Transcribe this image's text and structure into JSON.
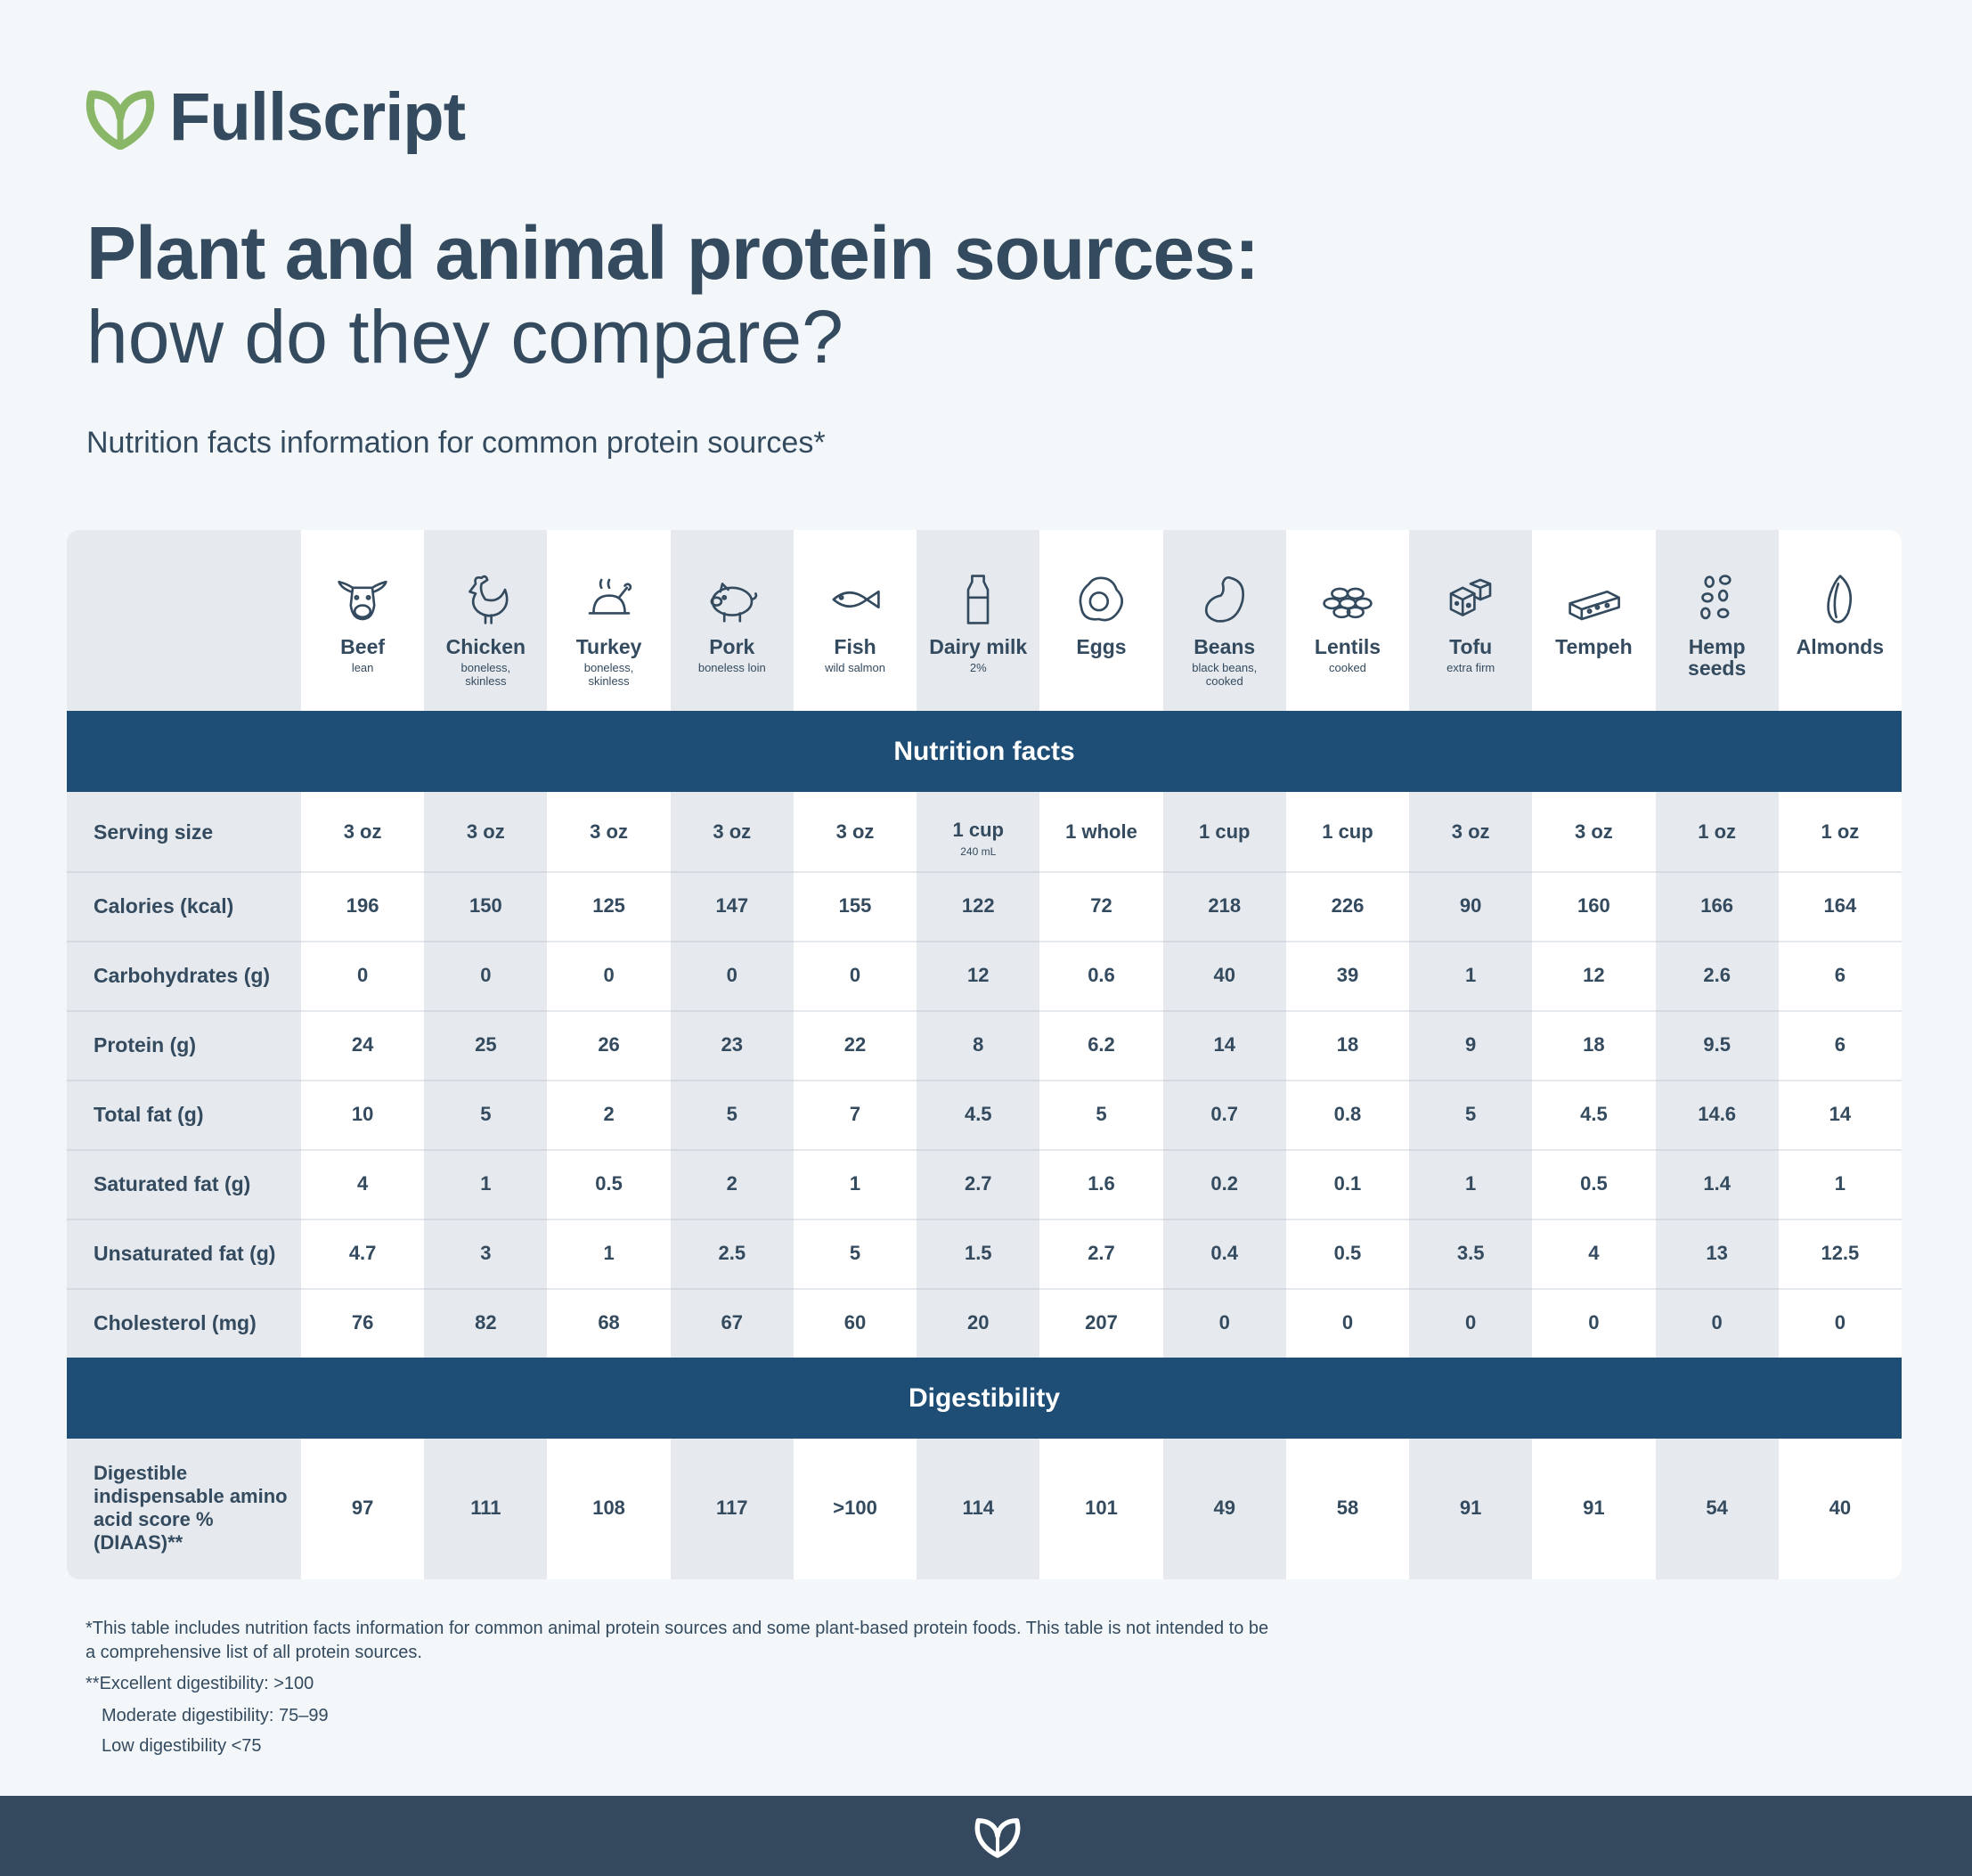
{
  "header": {
    "brand": "Fullscript",
    "title": "Plant and animal protein sources:",
    "subtitle": "how do they compare?",
    "intro": "Nutrition facts information for common protein sources*"
  },
  "table": {
    "columns": [
      {
        "name": "Beef",
        "note": "lean"
      },
      {
        "name": "Chicken",
        "note": "boneless, skinless"
      },
      {
        "name": "Turkey",
        "note": "boneless, skinless"
      },
      {
        "name": "Pork",
        "note": "boneless loin"
      },
      {
        "name": "Fish",
        "note": "wild salmon"
      },
      {
        "name": "Dairy milk",
        "note": "2%"
      },
      {
        "name": "Eggs"
      },
      {
        "name": "Beans",
        "note": "black beans, cooked"
      },
      {
        "name": "Lentils",
        "note": "cooked"
      },
      {
        "name": "Tofu",
        "note": "extra firm"
      },
      {
        "name": "Tempeh"
      },
      {
        "name": "Hemp seeds"
      },
      {
        "name": "Almonds"
      }
    ],
    "sections": [
      {
        "title": "Nutrition facts",
        "rows": [
          {
            "label": "Serving size",
            "values": [
              "3 oz",
              "3 oz",
              "3 oz",
              "3 oz",
              "3 oz",
              {
                "text": "1 cup",
                "note": "240 mL"
              },
              "1 whole",
              "1 cup",
              "1 cup",
              "3 oz",
              "3 oz",
              "1 oz",
              "1 oz"
            ]
          },
          {
            "label": "Calories (kcal)",
            "values": [
              196,
              150,
              125,
              147,
              155,
              122,
              72,
              218,
              226,
              90,
              160,
              166,
              164
            ]
          },
          {
            "label": "Carbohydrates (g)",
            "values": [
              0,
              0,
              0,
              0,
              0,
              12,
              0.6,
              40,
              39,
              1,
              12,
              2.6,
              6
            ]
          },
          {
            "label": "Protein (g)",
            "values": [
              24,
              25,
              26,
              23,
              22,
              8,
              6.2,
              14,
              18,
              9,
              18,
              9.5,
              6
            ]
          },
          {
            "label": "Total fat (g)",
            "values": [
              10,
              5,
              2,
              5,
              7,
              4.5,
              5,
              0.7,
              0.8,
              5,
              4.5,
              14.6,
              14
            ]
          },
          {
            "label": "Saturated fat (g)",
            "values": [
              4,
              1,
              0.5,
              2,
              1,
              2.7,
              1.6,
              0.2,
              0.1,
              1,
              0.5,
              1.4,
              1
            ]
          },
          {
            "label": "Unsaturated fat (g)",
            "values": [
              4.7,
              3,
              1,
              2.5,
              5,
              1.5,
              2.7,
              0.4,
              0.5,
              3.5,
              4,
              13,
              12.5
            ]
          },
          {
            "label": "Cholesterol (mg)",
            "values": [
              76,
              82,
              68,
              67,
              60,
              20,
              207,
              0,
              0,
              0,
              0,
              0,
              0
            ]
          }
        ]
      },
      {
        "title": "Digestibility",
        "rows": [
          {
            "label": "Digestible indispensable amino acid score % (DIAAS)**",
            "values": [
              97,
              111,
              108,
              117,
              ">100",
              114,
              101,
              49,
              58,
              91,
              91,
              54,
              40
            ]
          }
        ]
      }
    ]
  },
  "footnotes": [
    "*This table includes nutrition facts information for common animal protein sources and some plant-based protein foods. This table is not intended to be a comprehensive list of all protein sources.",
    "**Excellent digestibility: >100",
    "Moderate digestibility: 75–99",
    "Low digestibility <75"
  ]
}
